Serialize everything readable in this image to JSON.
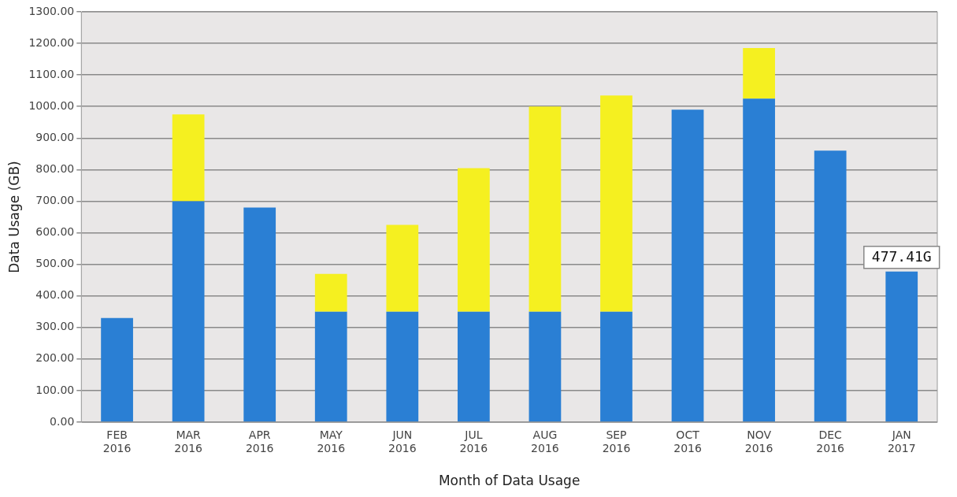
{
  "chart_data": {
    "type": "bar",
    "stacked": true,
    "xlabel": "Month of Data Usage",
    "ylabel": "Data Usage (GB)",
    "categories": [
      "FEB 2016",
      "MAR 2016",
      "APR 2016",
      "MAY 2016",
      "JUN 2016",
      "JUL 2016",
      "AUG 2016",
      "SEP 2016",
      "OCT 2016",
      "NOV 2016",
      "DEC 2016",
      "JAN 2017"
    ],
    "series": [
      {
        "color": "#2a7fd4",
        "values": [
          330,
          700,
          680,
          350,
          350,
          350,
          350,
          350,
          990,
          1025,
          860,
          477.41
        ]
      },
      {
        "color": "#f5f020",
        "values": [
          null,
          275,
          null,
          120,
          275,
          455,
          650,
          685,
          null,
          160,
          null,
          null
        ]
      }
    ],
    "ylim": [
      0,
      1300
    ],
    "yticks": [
      {
        "value": 0,
        "label": "0.00"
      },
      {
        "value": 100,
        "label": "100.00"
      },
      {
        "value": 200,
        "label": "200.00"
      },
      {
        "value": 300,
        "label": "300.00"
      },
      {
        "value": 400,
        "label": "400.00"
      },
      {
        "value": 500,
        "label": "500.00"
      },
      {
        "value": 600,
        "label": "600.00"
      },
      {
        "value": 700,
        "label": "700.00"
      },
      {
        "value": 800,
        "label": "800.00"
      },
      {
        "value": 900,
        "label": "900.00"
      },
      {
        "value": 1000,
        "label": "1000.00"
      },
      {
        "value": 1100,
        "label": "1100.00"
      },
      {
        "value": 1200,
        "label": "1200.00"
      },
      {
        "value": 1300,
        "label": "1300.00"
      }
    ],
    "grid": "y",
    "legend": false,
    "annotations": [
      {
        "text": "477.41G",
        "x": "JAN 2017",
        "y": 477.41
      }
    ]
  }
}
